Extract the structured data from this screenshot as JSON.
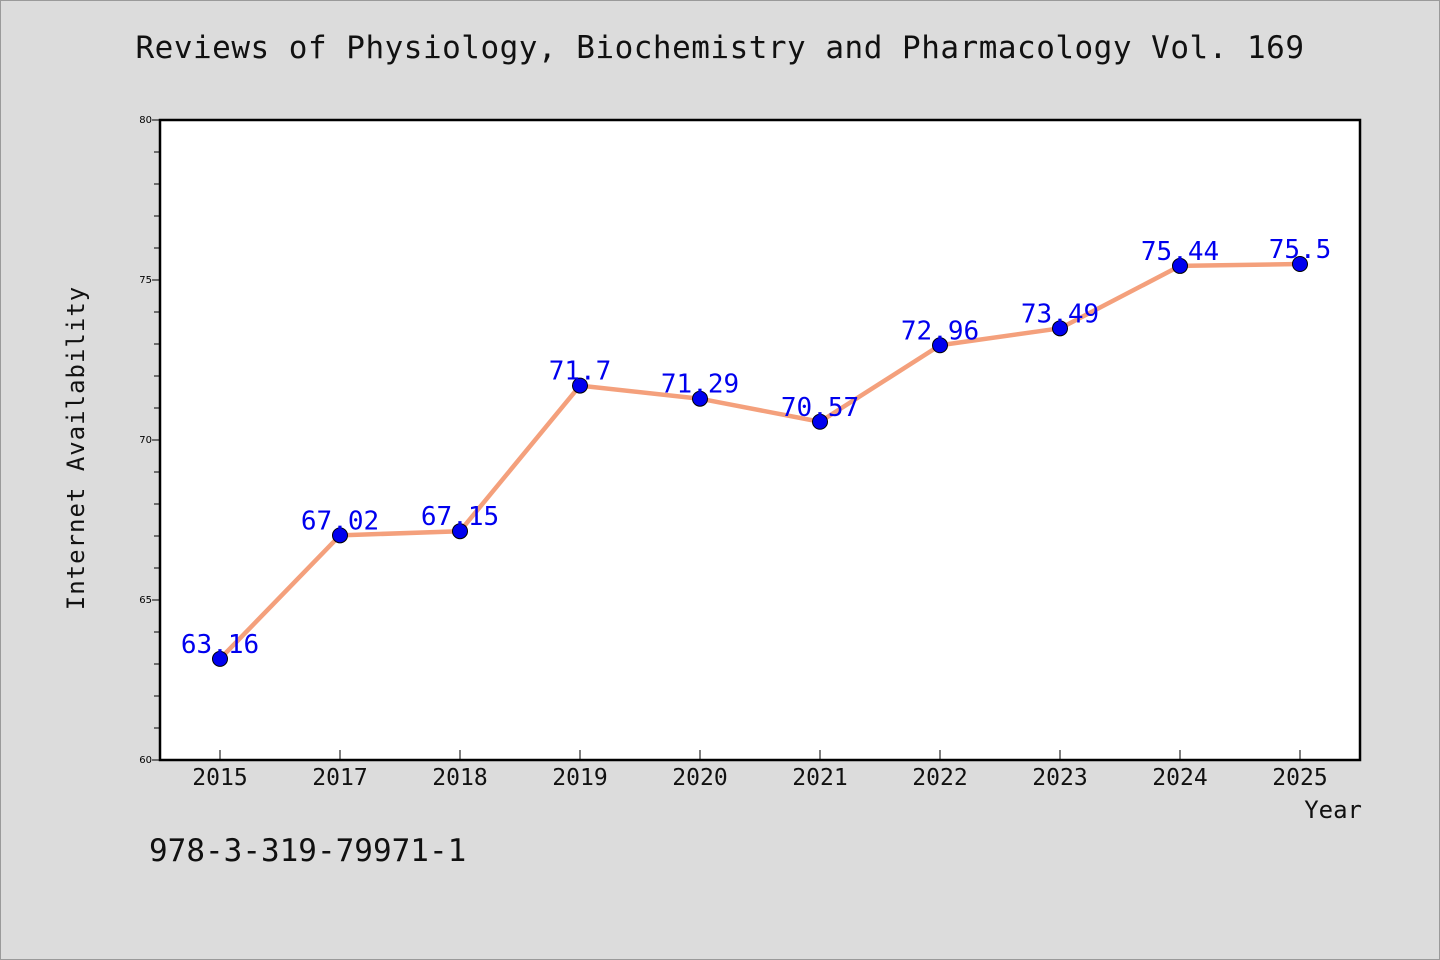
{
  "page": {
    "title": "Reviews of Physiology, Biochemistry and Pharmacology Vol. 169",
    "footnote": "978-3-319-79971-1"
  },
  "colors": {
    "background": "#dcdcdc",
    "plot_area": "#ffffff",
    "line": "#f4a07c",
    "marker": "#0000ee",
    "data_label": "#0000ee",
    "axis": "#000000"
  },
  "chart_data": {
    "type": "line",
    "title": "Reviews of Physiology, Biochemistry and Pharmacology Vol. 169",
    "xlabel": "Year",
    "ylabel": "Internet Availability",
    "categories": [
      "2015",
      "2017",
      "2018",
      "2019",
      "2020",
      "2021",
      "2022",
      "2023",
      "2024",
      "2025"
    ],
    "series": [
      {
        "values": [
          63.16,
          67.02,
          67.15,
          71.7,
          71.29,
          70.57,
          72.96,
          73.49,
          75.44,
          75.5
        ],
        "labels": [
          "63.16",
          "67.02",
          "67.15",
          "71.7",
          "71.29",
          "70.57",
          "72.96",
          "73.49",
          "75.44",
          "75.5"
        ]
      }
    ],
    "ylim": [
      60,
      80
    ],
    "yticks": [
      60,
      65,
      70,
      75,
      80
    ],
    "ytick_labels": [
      "60",
      "65",
      "70",
      "75",
      "80"
    ],
    "minor_ytick_step": 1,
    "grid": false,
    "legend": "none"
  }
}
